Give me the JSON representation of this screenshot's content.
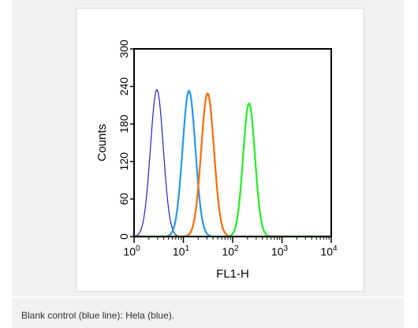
{
  "caption": "Blank control (blue line): Hela (blue).",
  "chart_data": {
    "type": "line",
    "xlabel": "FL1-H",
    "ylabel": "Counts",
    "x_scale": "log",
    "xlim": [
      1,
      10000
    ],
    "ylim": [
      0,
      300
    ],
    "x_ticks": [
      {
        "base": "10",
        "exp": "0"
      },
      {
        "base": "10",
        "exp": "1"
      },
      {
        "base": "10",
        "exp": "2"
      },
      {
        "base": "10",
        "exp": "3"
      },
      {
        "base": "10",
        "exp": "4"
      }
    ],
    "y_ticks": [
      "0",
      "60",
      "120",
      "180",
      "240",
      "300"
    ],
    "grid": false,
    "series": [
      {
        "color": "#2222cc",
        "width": 1.2,
        "peak_x": 2.9,
        "peak_y": 235,
        "log_sigma": 0.13
      },
      {
        "color": "#2299ee",
        "width": 2.2,
        "peak_x": 13,
        "peak_y": 233,
        "log_sigma": 0.13
      },
      {
        "color": "#ff6a00",
        "width": 2.2,
        "peak_x": 31,
        "peak_y": 229,
        "log_sigma": 0.13
      },
      {
        "color": "#22ee22",
        "width": 2.2,
        "peak_x": 215,
        "peak_y": 213,
        "log_sigma": 0.12
      }
    ]
  }
}
